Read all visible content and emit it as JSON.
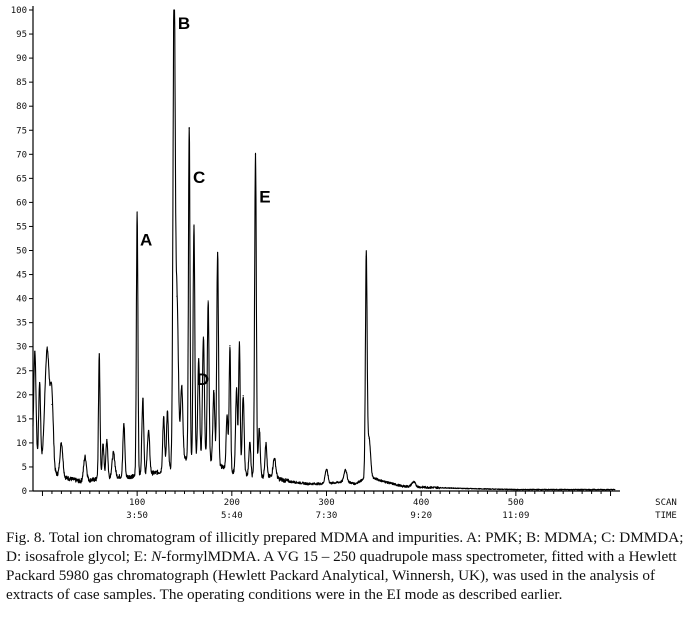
{
  "chart_data": {
    "type": "line",
    "title": "",
    "xlabel": "SCAN",
    "xlabel2": "TIME",
    "ylabel": "",
    "xlim": [
      -10,
      610
    ],
    "ylim": [
      0,
      100
    ],
    "y_ticks": [
      0,
      5,
      10,
      15,
      20,
      25,
      30,
      35,
      40,
      45,
      50,
      55,
      60,
      65,
      70,
      75,
      80,
      85,
      90,
      95,
      100
    ],
    "x_ticks": [
      {
        "scan": 100,
        "scan_label": "100",
        "time_label": "3:50"
      },
      {
        "scan": 200,
        "scan_label": "200",
        "time_label": "5:40"
      },
      {
        "scan": 300,
        "scan_label": "300",
        "time_label": "7:30"
      },
      {
        "scan": 400,
        "scan_label": "400",
        "time_label": "9:20"
      },
      {
        "scan": 500,
        "scan_label": "500",
        "time_label": "11:09"
      }
    ],
    "x_end_labels": {
      "top": "SCAN",
      "bottom": "TIME"
    },
    "baseline": [
      [
        -10,
        8
      ],
      [
        -6,
        6
      ],
      [
        0,
        5
      ],
      [
        10,
        4
      ],
      [
        20,
        3
      ],
      [
        40,
        2
      ],
      [
        60,
        2.5
      ],
      [
        80,
        3
      ],
      [
        100,
        3
      ],
      [
        110,
        3.5
      ],
      [
        125,
        4
      ],
      [
        140,
        5
      ],
      [
        148,
        7
      ],
      [
        160,
        6
      ],
      [
        170,
        7
      ],
      [
        180,
        6
      ],
      [
        190,
        5
      ],
      [
        200,
        4
      ],
      [
        210,
        4
      ],
      [
        220,
        3
      ],
      [
        240,
        3
      ],
      [
        260,
        2
      ],
      [
        280,
        1.5
      ],
      [
        300,
        1.5
      ],
      [
        320,
        2
      ],
      [
        330,
        1.5
      ],
      [
        345,
        3
      ],
      [
        360,
        2
      ],
      [
        380,
        1
      ],
      [
        400,
        0.8
      ],
      [
        450,
        0.5
      ],
      [
        500,
        0.3
      ],
      [
        610,
        0.3
      ]
    ],
    "peaks": [
      {
        "x": -8,
        "y": 22,
        "w": 1.2
      },
      {
        "x": -3,
        "y": 17,
        "w": 1.0
      },
      {
        "x": 5,
        "y": 25,
        "w": 2.5
      },
      {
        "x": 10,
        "y": 14,
        "w": 1.5
      },
      {
        "x": 20,
        "y": 7,
        "w": 1.5
      },
      {
        "x": 45,
        "y": 5,
        "w": 1.5
      },
      {
        "x": 60,
        "y": 26,
        "w": 0.8
      },
      {
        "x": 64,
        "y": 7,
        "w": 1.0
      },
      {
        "x": 68,
        "y": 8,
        "w": 1.0
      },
      {
        "x": 75,
        "y": 5,
        "w": 1.5
      },
      {
        "x": 86,
        "y": 11,
        "w": 1.0
      },
      {
        "x": 100,
        "y": 55,
        "w": 0.8
      },
      {
        "x": 106,
        "y": 16,
        "w": 1.0
      },
      {
        "x": 112,
        "y": 9,
        "w": 1.2
      },
      {
        "x": 128,
        "y": 11,
        "w": 1.0
      },
      {
        "x": 132,
        "y": 12,
        "w": 1.0
      },
      {
        "x": 139,
        "y": 100,
        "w": 1.1
      },
      {
        "x": 142,
        "y": 35,
        "w": 1.5
      },
      {
        "x": 147,
        "y": 15,
        "w": 1.2
      },
      {
        "x": 155,
        "y": 69,
        "w": 0.8
      },
      {
        "x": 160,
        "y": 49,
        "w": 0.9
      },
      {
        "x": 165,
        "y": 21,
        "w": 1.0
      },
      {
        "x": 170,
        "y": 25,
        "w": 1.0
      },
      {
        "x": 175,
        "y": 33,
        "w": 0.9
      },
      {
        "x": 181,
        "y": 15,
        "w": 1.0
      },
      {
        "x": 185,
        "y": 44,
        "w": 0.9
      },
      {
        "x": 195,
        "y": 11,
        "w": 1.0
      },
      {
        "x": 198,
        "y": 26,
        "w": 0.8
      },
      {
        "x": 205,
        "y": 17,
        "w": 1.0
      },
      {
        "x": 208,
        "y": 27,
        "w": 0.8
      },
      {
        "x": 212,
        "y": 16,
        "w": 1.0
      },
      {
        "x": 219,
        "y": 7,
        "w": 1.0
      },
      {
        "x": 225,
        "y": 67,
        "w": 0.9
      },
      {
        "x": 229,
        "y": 10,
        "w": 1.0
      },
      {
        "x": 236,
        "y": 7,
        "w": 1.0
      },
      {
        "x": 245,
        "y": 4,
        "w": 1.5
      },
      {
        "x": 300,
        "y": 3,
        "w": 1.5
      },
      {
        "x": 320,
        "y": 2.5,
        "w": 1.5
      },
      {
        "x": 342,
        "y": 46,
        "w": 0.9
      },
      {
        "x": 345,
        "y": 8,
        "w": 1.5
      },
      {
        "x": 392,
        "y": 1,
        "w": 2.0
      }
    ],
    "annotations": [
      {
        "label": "A",
        "x": 103,
        "y": 51
      },
      {
        "label": "B",
        "x": 143,
        "y": 96
      },
      {
        "label": "C",
        "x": 159,
        "y": 64
      },
      {
        "label": "D",
        "x": 163,
        "y": 22
      },
      {
        "label": "E",
        "x": 229,
        "y": 60
      }
    ]
  },
  "caption": "Fig. 8. Total ion chromatogram of illicitly prepared MDMA and impurities. A: PMK; B: MDMA; C: DMMDA; D: isosafrole glycol; E: N-formylMDMA. A VG 15 – 250 quadrupole mass spectrometer, fitted with a Hewlett Packard 5980 gas chromatograph (Hewlett Packard Analytical, Winnersh, UK), was used in the analysis of extracts of case samples. The operating conditions were in the EI mode as described earlier."
}
